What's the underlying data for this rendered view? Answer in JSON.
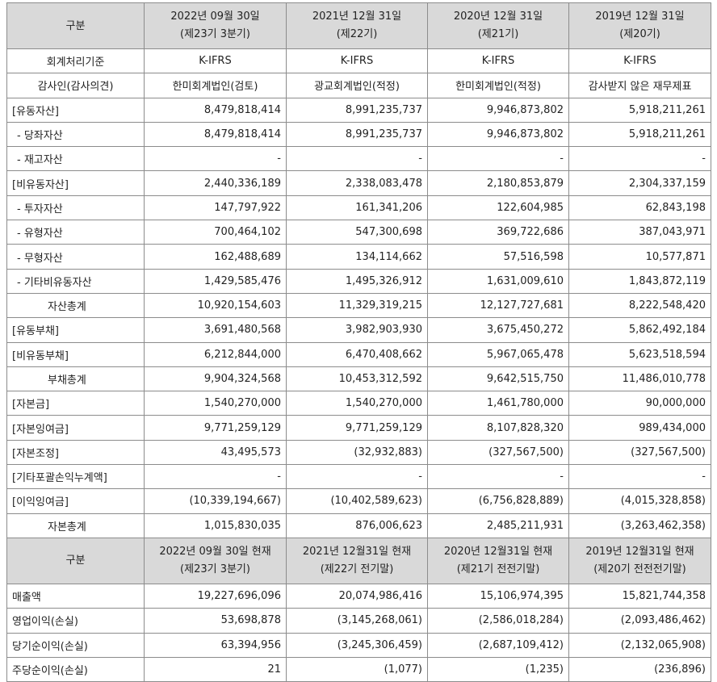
{
  "header1": {
    "label": "구분",
    "cols": [
      {
        "line1": "2022년 09월 30일",
        "line2": "(제23기 3분기)"
      },
      {
        "line1": "2021년 12월 31일",
        "line2": "(제22기)"
      },
      {
        "line1": "2020년 12월 31일",
        "line2": "(제21기)"
      },
      {
        "line1": "2019년 12월 31일",
        "line2": "(제20기)"
      }
    ]
  },
  "balance_rows": [
    {
      "label": "회계처리기준",
      "style": "center",
      "align": "c",
      "values": [
        "K-IFRS",
        "K-IFRS",
        "K-IFRS",
        "K-IFRS"
      ]
    },
    {
      "label": "감사인(감사의견)",
      "style": "center",
      "align": "c",
      "values": [
        "한미회계법인(검토)",
        "광교회계법인(적정)",
        "한미회계법인(적정)",
        "감사받지 않은 재무제표"
      ]
    },
    {
      "label": "[유동자산]",
      "style": "plain",
      "align": "r",
      "values": [
        "8,479,818,414",
        "8,991,235,737",
        "9,946,873,802",
        "5,918,211,261"
      ]
    },
    {
      "label": "- 당좌자산",
      "style": "indent",
      "align": "r",
      "values": [
        "8,479,818,414",
        "8,991,235,737",
        "9,946,873,802",
        "5,918,211,261"
      ]
    },
    {
      "label": "- 재고자산",
      "style": "indent",
      "align": "r",
      "values": [
        "-",
        "-",
        "-",
        "-"
      ]
    },
    {
      "label": "[비유동자산]",
      "style": "plain",
      "align": "r",
      "values": [
        "2,440,336,189",
        "2,338,083,478",
        "2,180,853,879",
        "2,304,337,159"
      ]
    },
    {
      "label": "- 투자자산",
      "style": "indent",
      "align": "r",
      "values": [
        "147,797,922",
        "161,341,206",
        "122,604,985",
        "62,843,198"
      ]
    },
    {
      "label": "- 유형자산",
      "style": "indent",
      "align": "r",
      "values": [
        "700,464,102",
        "547,300,698",
        "369,722,686",
        "387,043,971"
      ]
    },
    {
      "label": "- 무형자산",
      "style": "indent",
      "align": "r",
      "values": [
        "162,488,689",
        "134,114,662",
        "57,516,598",
        "10,577,871"
      ]
    },
    {
      "label": "- 기타비유동자산",
      "style": "indent",
      "align": "r",
      "values": [
        "1,429,585,476",
        "1,495,326,912",
        "1,631,009,610",
        "1,843,872,119"
      ]
    },
    {
      "label": "자산총계",
      "style": "total",
      "align": "r",
      "values": [
        "10,920,154,603",
        "11,329,319,215",
        "12,127,727,681",
        "8,222,548,420"
      ]
    },
    {
      "label": "[유동부채]",
      "style": "plain",
      "align": "r",
      "values": [
        "3,691,480,568",
        "3,982,903,930",
        "3,675,450,272",
        "5,862,492,184"
      ]
    },
    {
      "label": "[비유동부채]",
      "style": "plain",
      "align": "r",
      "values": [
        "6,212,844,000",
        "6,470,408,662",
        "5,967,065,478",
        "5,623,518,594"
      ]
    },
    {
      "label": "부채총계",
      "style": "total",
      "align": "r",
      "values": [
        "9,904,324,568",
        "10,453,312,592",
        "9,642,515,750",
        "11,486,010,778"
      ]
    },
    {
      "label": "[자본금]",
      "style": "plain",
      "align": "r",
      "values": [
        "1,540,270,000",
        "1,540,270,000",
        "1,461,780,000",
        "90,000,000"
      ]
    },
    {
      "label": "[자본잉여금]",
      "style": "plain",
      "align": "r",
      "values": [
        "9,771,259,129",
        "9,771,259,129",
        "8,107,828,320",
        "989,434,000"
      ]
    },
    {
      "label": "[자본조정]",
      "style": "plain",
      "align": "r",
      "values": [
        "43,495,573",
        "(32,932,883)",
        "(327,567,500)",
        "(327,567,500)"
      ]
    },
    {
      "label": "[기타포괄손익누계액]",
      "style": "plain",
      "align": "r",
      "values": [
        "-",
        "-",
        "-",
        "-"
      ]
    },
    {
      "label": "[이익잉여금]",
      "style": "plain",
      "align": "r",
      "values": [
        "(10,339,194,667)",
        "(10,402,589,623)",
        "(6,756,828,889)",
        "(4,015,328,858)"
      ]
    },
    {
      "label": "자본총계",
      "style": "total",
      "align": "r",
      "values": [
        "1,015,830,035",
        "876,006,623",
        "2,485,211,931",
        "(3,263,462,358)"
      ]
    }
  ],
  "header2": {
    "label": "구분",
    "cols": [
      {
        "line1": "2022년 09월 30일 현재",
        "line2": "(제23기 3분기)"
      },
      {
        "line1": "2021년 12월31일 현재",
        "line2": "(제22기 전기말)"
      },
      {
        "line1": "2020년 12월31일 현재",
        "line2": "(제21기 전전기말)"
      },
      {
        "line1": "2019년 12월31일 현재",
        "line2": "(제20기 전전전기말)"
      }
    ]
  },
  "income_rows": [
    {
      "label": "매출액",
      "style": "plain",
      "align": "r",
      "values": [
        "19,227,696,096",
        "20,074,986,416",
        "15,106,974,395",
        "15,821,744,358"
      ]
    },
    {
      "label": "영업이익(손실)",
      "style": "plain",
      "align": "r",
      "values": [
        "53,698,878",
        "(3,145,268,061)",
        "(2,586,018,284)",
        "(2,093,486,462)"
      ]
    },
    {
      "label": "당기순이익(손실)",
      "style": "plain",
      "align": "r",
      "values": [
        "63,394,956",
        "(3,245,306,459)",
        "(2,687,109,412)",
        "(2,132,065,908)"
      ]
    },
    {
      "label": "주당순이익(손실)",
      "style": "plain",
      "align": "r",
      "values": [
        "21",
        "(1,077)",
        "(1,235)",
        "(236,896)"
      ]
    }
  ]
}
